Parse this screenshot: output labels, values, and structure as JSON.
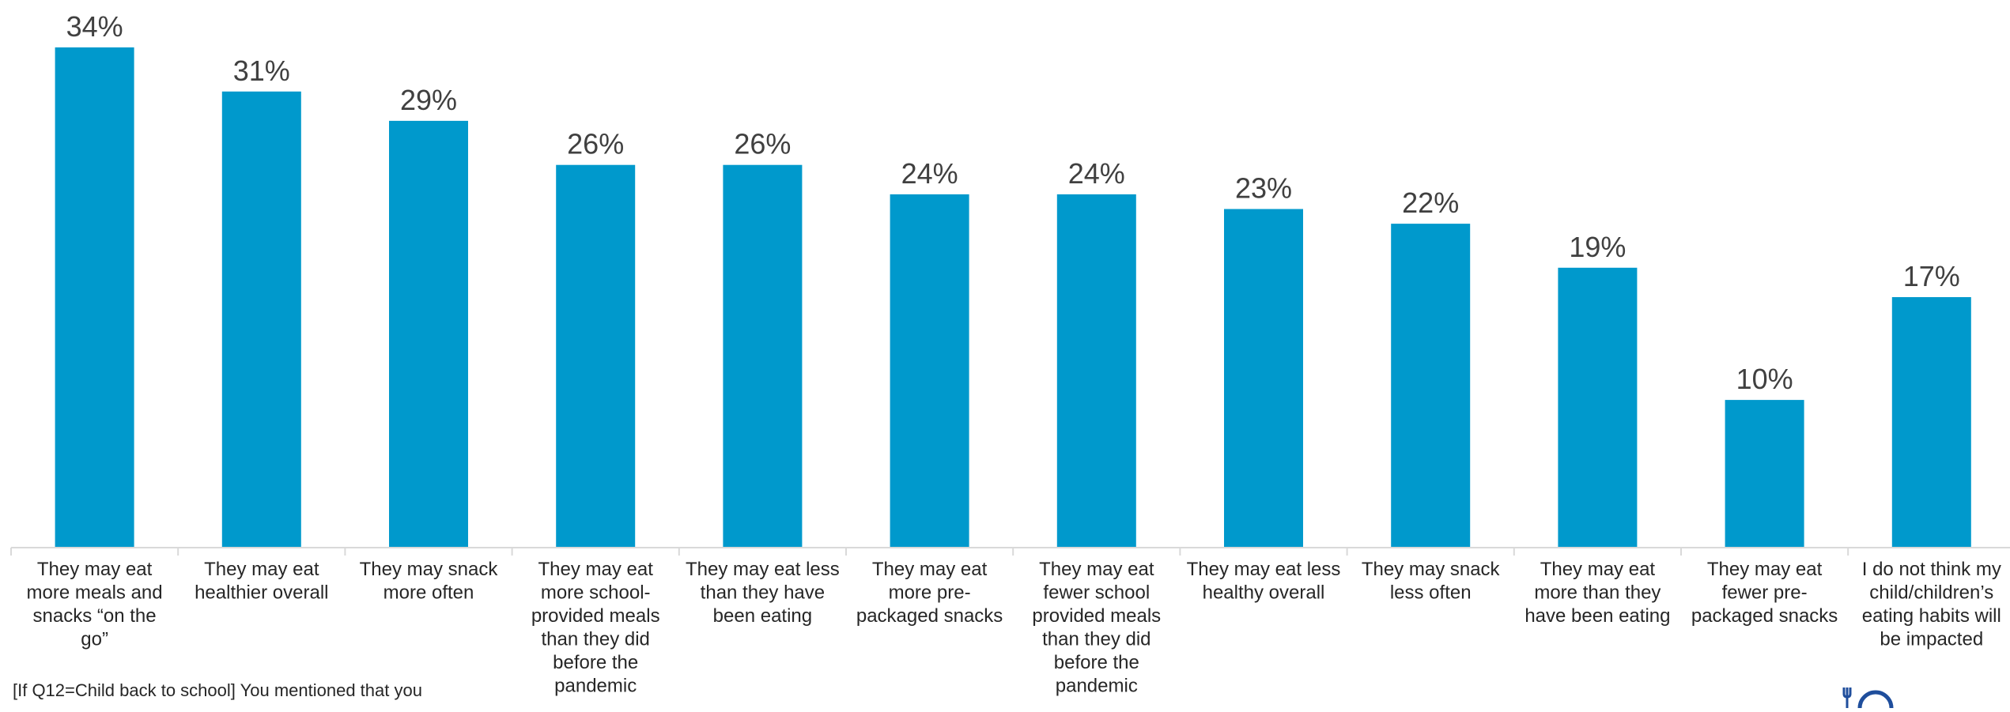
{
  "chart_data": {
    "type": "bar",
    "title": "",
    "xlabel": "",
    "ylabel": "",
    "ylim": [
      0,
      34
    ],
    "grid": false,
    "legend": "none",
    "value_suffix": "%",
    "bar_color": "#0099CC",
    "categories": [
      [
        "They may eat",
        "more meals and",
        "snacks “on the",
        "go”"
      ],
      [
        "They may eat",
        "healthier overall"
      ],
      [
        "They may snack",
        "more often"
      ],
      [
        "They may eat",
        "more school-",
        "provided meals",
        "than they did",
        "before the",
        "pandemic"
      ],
      [
        "They may eat less",
        "than they have",
        "been eating"
      ],
      [
        "They may eat",
        "more pre-",
        "packaged snacks"
      ],
      [
        "They may eat",
        "fewer school",
        "provided meals",
        "than they did",
        "before the",
        "pandemic"
      ],
      [
        "They may eat less",
        "healthy overall"
      ],
      [
        "They may snack",
        "less often"
      ],
      [
        "They may eat",
        "more than they",
        "have been eating"
      ],
      [
        "They may eat",
        "fewer pre-",
        "packaged snacks"
      ],
      [
        "I do not think my",
        "child/children’s",
        "eating habits will",
        "be impacted"
      ]
    ],
    "values": [
      34,
      31,
      29,
      26,
      26,
      24,
      24,
      23,
      22,
      19,
      10,
      17
    ]
  },
  "footnote": "[If Q12=Child back to school] You mentioned that you",
  "colors": {
    "bar": "#0099CC",
    "value_label": "#404040",
    "category_label": "#262626",
    "axis": "#D9D9D9",
    "logo": "#1F4E9C"
  },
  "logo_icon": "plate-logo-icon"
}
